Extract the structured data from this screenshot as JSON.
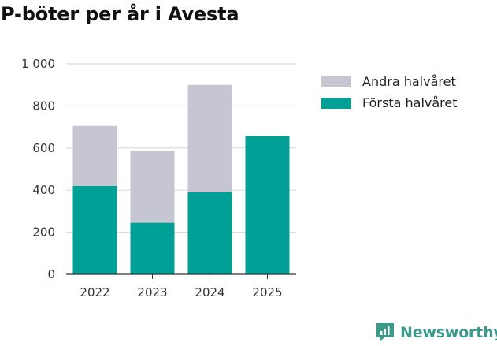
{
  "title": "P-böter per år i Avesta",
  "colors": {
    "forsta": "#00a096",
    "andra": "#c6c6d2",
    "brand": "#3c9a8b"
  },
  "chart_data": {
    "type": "bar",
    "stacked": true,
    "categories": [
      "2022",
      "2023",
      "2024",
      "2025"
    ],
    "series": [
      {
        "name": "Första halvåret",
        "values": [
          420,
          245,
          390,
          657
        ]
      },
      {
        "name": "Andra halvåret",
        "values": [
          285,
          340,
          510,
          0
        ]
      }
    ],
    "ylim": [
      0,
      1000
    ],
    "yticks": [
      0,
      200,
      400,
      600,
      800,
      1000
    ],
    "ytick_labels": [
      "0",
      "200",
      "400",
      "600",
      "800",
      "1 000"
    ],
    "grid": true,
    "legend": "top-right"
  },
  "brand": {
    "name": "Newsworthy",
    "icon": "newsworthy-logo-icon"
  }
}
